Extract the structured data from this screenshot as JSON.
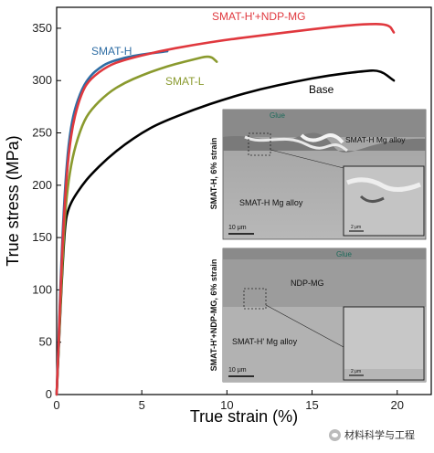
{
  "chart_data": {
    "type": "line",
    "xlabel": "True strain (%)",
    "ylabel": "True stress (MPa)",
    "xlim": [
      0,
      22
    ],
    "ylim": [
      0,
      370
    ],
    "xticks": [
      0,
      5,
      10,
      15,
      20
    ],
    "yticks": [
      0,
      50,
      100,
      150,
      200,
      250,
      300,
      350
    ],
    "grid": false,
    "series": [
      {
        "name": "SMAT-H",
        "color": "#2e6da4",
        "x": [
          0,
          0.3,
          0.5,
          0.7,
          1.0,
          1.5,
          2.0,
          2.5,
          3.0,
          4.0,
          5.0,
          6.0,
          6.5
        ],
        "y": [
          0,
          140,
          200,
          240,
          270,
          293,
          305,
          312,
          317,
          322,
          325,
          327,
          328
        ]
      },
      {
        "name": "SMAT-H'+NDP-MG",
        "color": "#e0383e",
        "x": [
          0,
          0.3,
          0.5,
          0.7,
          1.0,
          1.5,
          2.0,
          3.0,
          4.0,
          6.0,
          8.0,
          10.0,
          12.0,
          14.0,
          16.0,
          18.0,
          19.5,
          19.8
        ],
        "y": [
          0,
          130,
          190,
          230,
          263,
          290,
          302,
          314,
          320,
          328,
          334,
          339,
          343,
          347,
          351,
          354,
          354,
          346
        ]
      },
      {
        "name": "SMAT-L",
        "color": "#8a9a2e",
        "x": [
          0,
          0.3,
          0.5,
          0.7,
          1.0,
          1.5,
          2.0,
          3.0,
          4.0,
          5.0,
          6.0,
          7.0,
          8.0,
          9.0,
          9.4
        ],
        "y": [
          0,
          115,
          175,
          205,
          232,
          258,
          272,
          288,
          298,
          305,
          311,
          316,
          320,
          324,
          318
        ]
      },
      {
        "name": "Base",
        "color": "#000000",
        "x": [
          0,
          0.3,
          0.5,
          0.7,
          1.0,
          1.5,
          2.0,
          3.0,
          4.0,
          5.0,
          6.0,
          8.0,
          10.0,
          12.0,
          14.0,
          16.0,
          18.0,
          19.0,
          19.8
        ],
        "y": [
          0,
          110,
          165,
          178,
          188,
          200,
          210,
          226,
          239,
          250,
          259,
          272,
          283,
          292,
          299,
          305,
          309,
          310,
          300
        ]
      }
    ],
    "annotations": [
      {
        "text": "SMAT-H",
        "color": "#2e6da4"
      },
      {
        "text": "SMAT-H'+NDP-MG",
        "color": "#e0383e"
      },
      {
        "text": "SMAT-L",
        "color": "#8a9a2e"
      },
      {
        "text": "Base",
        "color": "#000000"
      }
    ],
    "insets": [
      {
        "side_label": "SMAT-H, 6% strain",
        "labels": [
          "Glue",
          "SMAT-H Mg alloy",
          "SMAT-H Mg alloy"
        ],
        "scale_bar": "10 μm",
        "zoom_scale_bar": "2 μm"
      },
      {
        "side_label": "SMAT-H'+NDP-MG, 6% strain",
        "labels": [
          "Glue",
          "NDP-MG",
          "SMAT-H' Mg alloy"
        ],
        "scale_bar": "10 μm",
        "zoom_scale_bar": "2 μm"
      }
    ]
  },
  "watermark": {
    "text": "材料科学与工程",
    "icon": "wechat-icon"
  }
}
